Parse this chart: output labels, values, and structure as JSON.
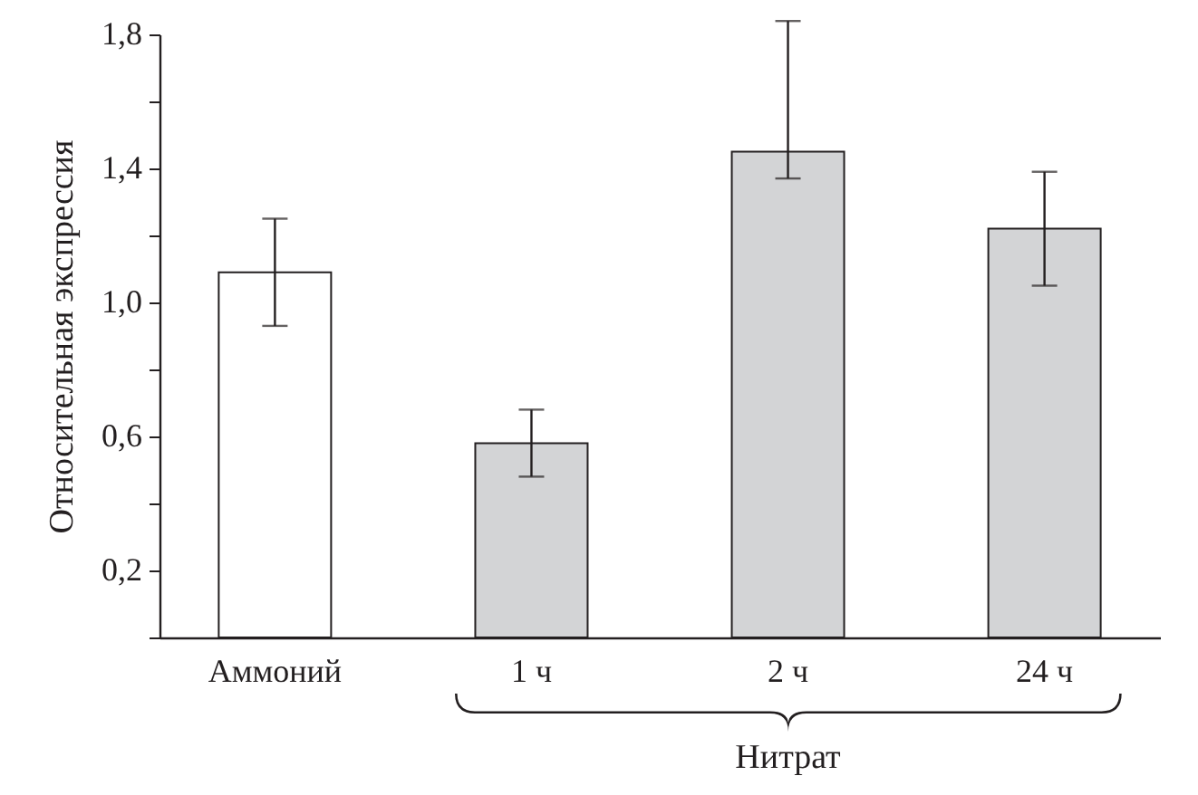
{
  "chart_data": {
    "type": "bar",
    "ylabel": "Относительная экспрессия",
    "categories": [
      "Аммоний",
      "1 ч",
      "2 ч",
      "24 ч"
    ],
    "values": [
      1.09,
      0.58,
      1.45,
      1.22
    ],
    "colors": [
      "#ffffff",
      "#d3d4d6",
      "#d3d4d6",
      "#d3d4d6"
    ],
    "errors": [
      [
        0.93,
        1.25
      ],
      [
        0.48,
        0.68
      ],
      [
        1.37,
        1.84
      ],
      [
        1.05,
        1.39
      ]
    ],
    "ylim": [
      0,
      1.8
    ],
    "yticks": [
      {
        "value": 0,
        "label": null
      },
      {
        "value": 0.2,
        "label": "0,2"
      },
      {
        "value": 0.4,
        "label": null
      },
      {
        "value": 0.6,
        "label": "0,6"
      },
      {
        "value": 0.8,
        "label": null
      },
      {
        "value": 1.0,
        "label": "1,0"
      },
      {
        "value": 1.2,
        "label": null
      },
      {
        "value": 1.4,
        "label": "1,4"
      },
      {
        "value": 1.6,
        "label": null
      },
      {
        "value": 1.8,
        "label": "1,8"
      }
    ],
    "grid": false,
    "annotations": [
      "Нитрат"
    ]
  }
}
